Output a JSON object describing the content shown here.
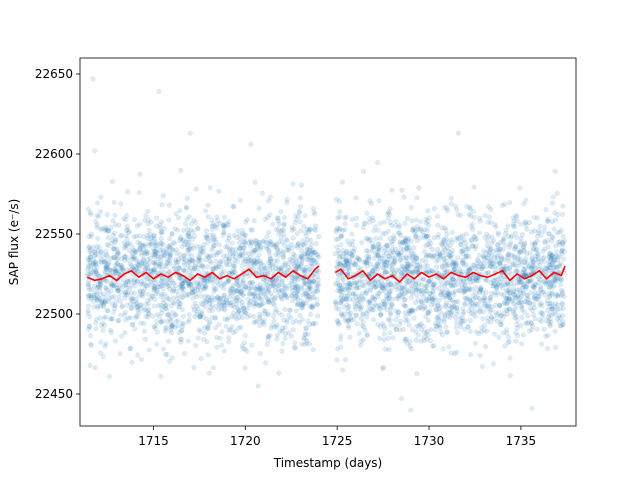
{
  "chart_data": {
    "type": "scatter",
    "title": "",
    "xlabel": "Timestamp (days)",
    "ylabel": "SAP flux (e⁻/s)",
    "xlim": [
      1711.0,
      1738.0
    ],
    "ylim": [
      22430,
      22660
    ],
    "xticks": [
      1715,
      1720,
      1725,
      1730,
      1735
    ],
    "xtick_labels": [
      "1715",
      "1720",
      "1725",
      "1730",
      "1735"
    ],
    "yticks": [
      22450,
      22500,
      22550,
      22600,
      22650
    ],
    "ytick_labels": [
      "22450",
      "22500",
      "22550",
      "22600",
      "22650"
    ],
    "grid": false,
    "legend": "none",
    "segments": [
      {
        "x_start": 1711.4,
        "x_end": 1724.0
      },
      {
        "x_start": 1724.9,
        "x_end": 1737.4
      }
    ],
    "series": [
      {
        "kind": "scatter",
        "color": "#1f77b4",
        "alpha": 0.15,
        "center": 22523,
        "spread_std": 20,
        "points": [
          {
            "x": 1711.7,
            "y": 22647
          },
          {
            "x": 1715.3,
            "y": 22639
          },
          {
            "x": 1711.8,
            "y": 22602
          },
          {
            "x": 1717.0,
            "y": 22613
          },
          {
            "x": 1720.3,
            "y": 22606
          },
          {
            "x": 1731.6,
            "y": 22613
          },
          {
            "x": 1729.0,
            "y": 22440
          },
          {
            "x": 1735.6,
            "y": 22441
          },
          {
            "x": 1720.7,
            "y": 22455
          },
          {
            "x": 1712.6,
            "y": 22461
          },
          {
            "x": 1715.4,
            "y": 22461
          },
          {
            "x": 1728.5,
            "y": 22447
          },
          {
            "x": 1725.3,
            "y": 22465
          }
        ]
      },
      {
        "kind": "line",
        "color": "#ff0000",
        "points": [
          [
            1711.4,
            22523
          ],
          [
            1711.8,
            22521
          ],
          [
            1712.2,
            22522
          ],
          [
            1712.6,
            22524
          ],
          [
            1713.0,
            22521
          ],
          [
            1713.4,
            22525
          ],
          [
            1713.8,
            22527
          ],
          [
            1714.2,
            22523
          ],
          [
            1714.6,
            22526
          ],
          [
            1715.0,
            22522
          ],
          [
            1715.4,
            22525
          ],
          [
            1715.8,
            22523
          ],
          [
            1716.2,
            22526
          ],
          [
            1716.6,
            22524
          ],
          [
            1717.0,
            22521
          ],
          [
            1717.4,
            22525
          ],
          [
            1717.8,
            22523
          ],
          [
            1718.2,
            22526
          ],
          [
            1718.6,
            22522
          ],
          [
            1719.0,
            22524
          ],
          [
            1719.4,
            22522
          ],
          [
            1719.8,
            22525
          ],
          [
            1720.2,
            22528
          ],
          [
            1720.6,
            22523
          ],
          [
            1721.0,
            22524
          ],
          [
            1721.4,
            22522
          ],
          [
            1721.8,
            22526
          ],
          [
            1722.2,
            22523
          ],
          [
            1722.6,
            22527
          ],
          [
            1723.0,
            22524
          ],
          [
            1723.4,
            22522
          ],
          [
            1723.8,
            22528
          ],
          [
            1724.0,
            22530
          ],
          null,
          [
            1724.9,
            22526
          ],
          [
            1725.2,
            22528
          ],
          [
            1725.6,
            22522
          ],
          [
            1726.0,
            22524
          ],
          [
            1726.4,
            22527
          ],
          [
            1726.8,
            22521
          ],
          [
            1727.2,
            22525
          ],
          [
            1727.6,
            22522
          ],
          [
            1728.0,
            22524
          ],
          [
            1728.4,
            22520
          ],
          [
            1728.8,
            22525
          ],
          [
            1729.2,
            22522
          ],
          [
            1729.6,
            22526
          ],
          [
            1730.0,
            22523
          ],
          [
            1730.4,
            22525
          ],
          [
            1730.8,
            22522
          ],
          [
            1731.2,
            22526
          ],
          [
            1731.6,
            22524
          ],
          [
            1732.0,
            22523
          ],
          [
            1732.4,
            22526
          ],
          [
            1732.8,
            22524
          ],
          [
            1733.2,
            22523
          ],
          [
            1733.6,
            22525
          ],
          [
            1734.0,
            22527
          ],
          [
            1734.4,
            22521
          ],
          [
            1734.8,
            22525
          ],
          [
            1735.2,
            22522
          ],
          [
            1735.6,
            22524
          ],
          [
            1736.0,
            22527
          ],
          [
            1736.4,
            22522
          ],
          [
            1736.8,
            22526
          ],
          [
            1737.2,
            22524
          ],
          [
            1737.4,
            22530
          ]
        ]
      }
    ]
  }
}
